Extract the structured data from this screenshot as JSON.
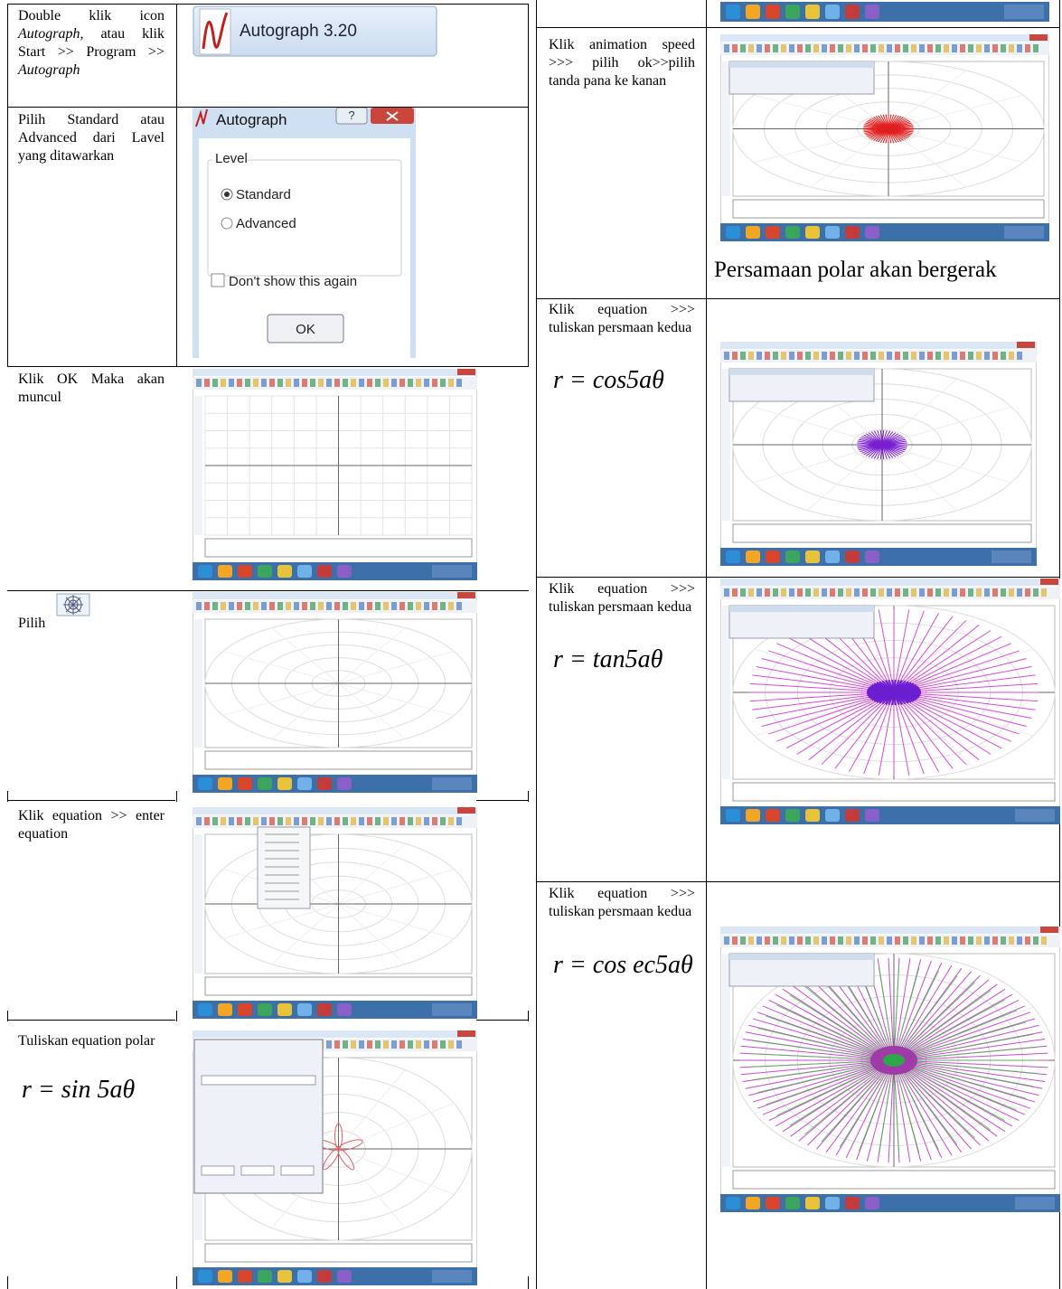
{
  "left_table": {
    "rows": [
      {
        "text": [
          "Double klik icon ",
          "Autograph,",
          " atau klik Start >> Program >> ",
          "Autograph"
        ],
        "image_label": "Autograph 3.20"
      },
      {
        "text": "Pilih Standard atau Advanced dari Lavel yang ditawarkan",
        "dialog": {
          "title": "Autograph",
          "group": "Level",
          "options": [
            "Standard",
            "Advanced"
          ],
          "checkbox": "Don't show this again",
          "button": "OK"
        }
      },
      {
        "text": "Klik OK Maka akan muncul"
      },
      {
        "text": "Pilih"
      },
      {
        "text": "Klik equation >> enter equation"
      },
      {
        "text": "Tuliskan equation polar",
        "formula": "r = sin 5aθ"
      }
    ]
  },
  "right_table": {
    "rows": [
      {
        "text": "Klik animation speed >>> pilih ok>>pilih tanda pana ke kanan",
        "caption": "Persamaan polar akan bergerak"
      },
      {
        "text": "Klik equation >>> tuliskan persmaan kedua",
        "formula": "r = cos5aθ"
      },
      {
        "text": "Klik equation >>> tuliskan persmaan kedua",
        "formula": "r = tan5aθ"
      },
      {
        "text": "Klik equation >>> tuliskan persmaan kedua",
        "formula": "r = cos ec5aθ"
      }
    ]
  }
}
